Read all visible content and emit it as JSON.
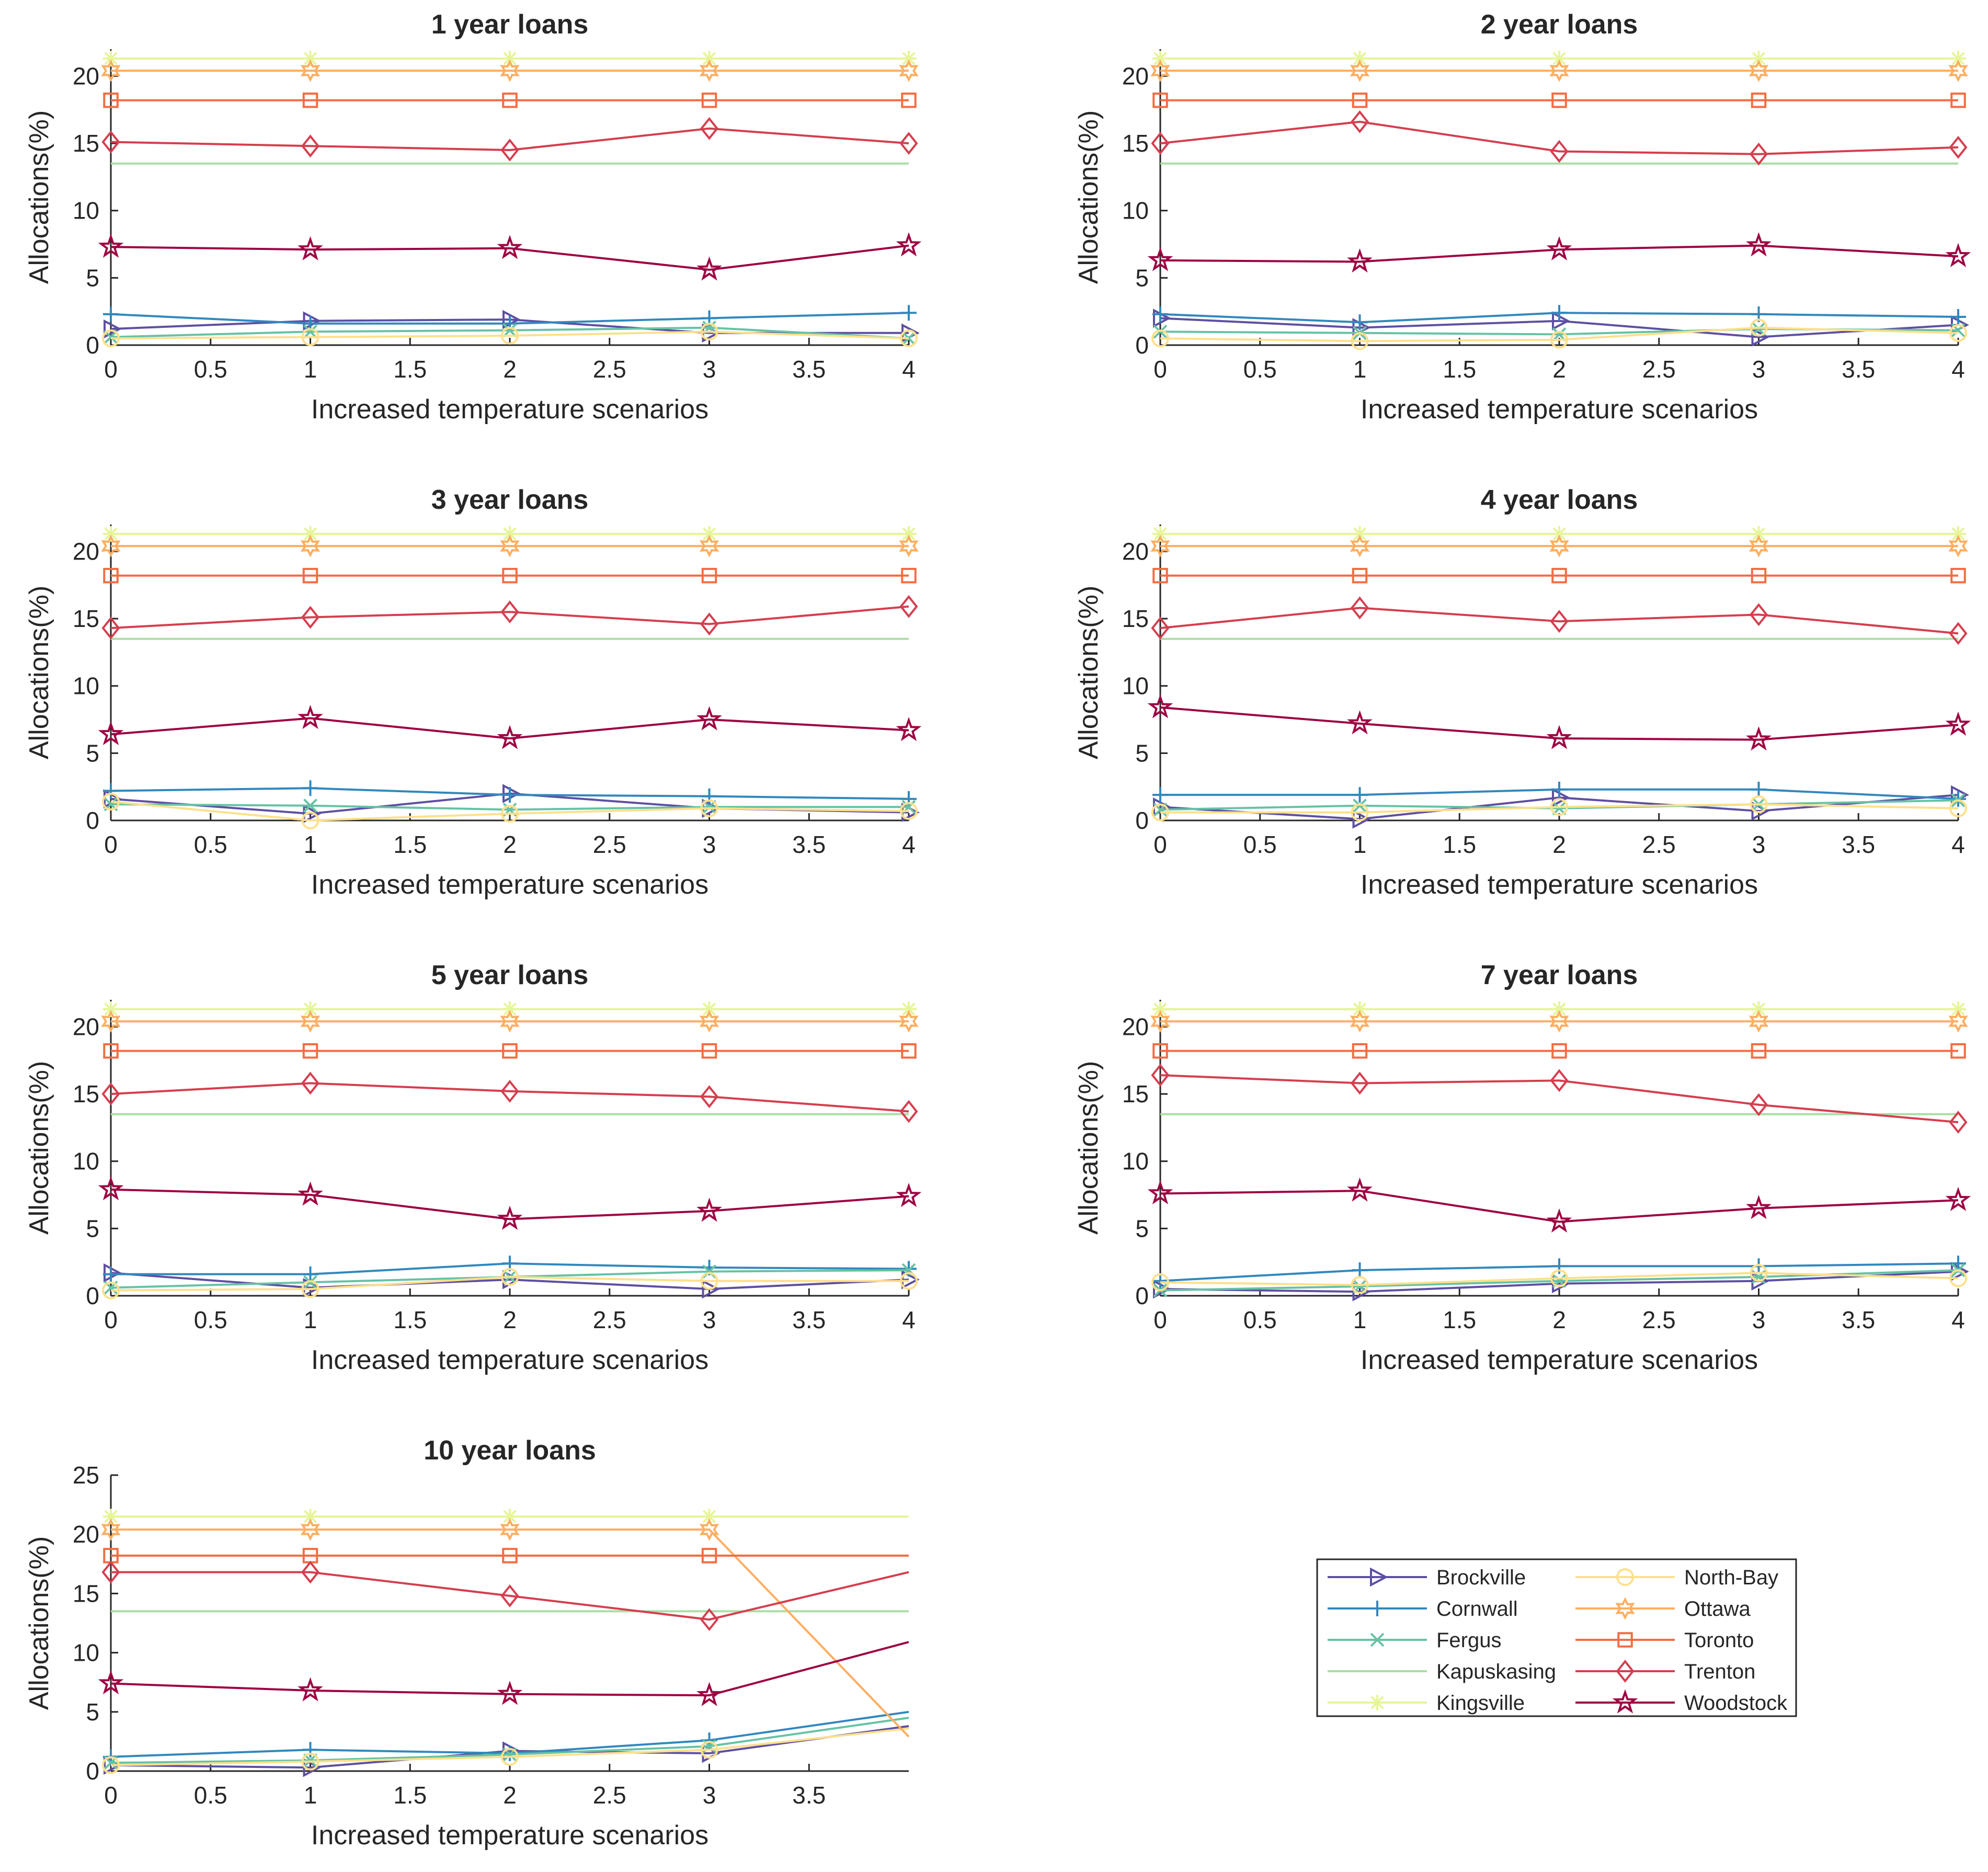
{
  "chart_data": {
    "type": "line",
    "xlabel": "Increased temperature scenarios",
    "ylabel": "Allocations(%)",
    "series_styles": [
      {
        "name": "Brockville",
        "color": "#5e4fa2",
        "marker": "triangle-right"
      },
      {
        "name": "Cornwall",
        "color": "#3288bd",
        "marker": "plus"
      },
      {
        "name": "Fergus",
        "color": "#66c2a5",
        "marker": "x"
      },
      {
        "name": "Kapuskasing",
        "color": "#abdda4",
        "marker": "none"
      },
      {
        "name": "Kingsville",
        "color": "#e6f598",
        "marker": "asterisk"
      },
      {
        "name": "North-Bay",
        "color": "#fee08b",
        "marker": "circle"
      },
      {
        "name": "Ottawa",
        "color": "#fdae61",
        "marker": "hexagram"
      },
      {
        "name": "Toronto",
        "color": "#f46d43",
        "marker": "square"
      },
      {
        "name": "Trenton",
        "color": "#d53e4f",
        "marker": "diamond"
      },
      {
        "name": "Woodstock",
        "color": "#9e0142",
        "marker": "pentagram"
      }
    ],
    "legend": {
      "placement": "lower-right",
      "entries": [
        "Brockville",
        "Cornwall",
        "Fergus",
        "Kapuskasing",
        "Kingsville",
        "North-Bay",
        "Ottawa",
        "Toronto",
        "Trenton",
        "Woodstock"
      ]
    },
    "charts": [
      {
        "title": "1 year loans",
        "x": [
          0,
          1,
          2,
          3,
          4
        ],
        "xlim": [
          0,
          4
        ],
        "ylim": [
          0,
          22
        ],
        "xticks": [
          "0",
          "0.5",
          "1",
          "1.5",
          "2",
          "2.5",
          "3",
          "3.5",
          "4"
        ],
        "yticks": [
          "0",
          "5",
          "10",
          "15",
          "20"
        ],
        "series": [
          {
            "name": "Brockville",
            "values": [
              1.2,
              1.8,
              1.9,
              0.9,
              0.9
            ]
          },
          {
            "name": "Cornwall",
            "values": [
              2.3,
              1.6,
              1.6,
              2.0,
              2.4
            ]
          },
          {
            "name": "Fergus",
            "values": [
              0.6,
              1.0,
              1.1,
              1.3,
              0.5
            ]
          },
          {
            "name": "Kapuskasing",
            "values": [
              13.5,
              13.5,
              13.5,
              13.5,
              13.5
            ]
          },
          {
            "name": "Kingsville",
            "values": [
              21.3,
              21.3,
              21.3,
              21.3,
              21.3
            ]
          },
          {
            "name": "North-Bay",
            "values": [
              0.5,
              0.6,
              0.7,
              1.0,
              0.5
            ]
          },
          {
            "name": "Ottawa",
            "values": [
              20.4,
              20.4,
              20.4,
              20.4,
              20.4
            ]
          },
          {
            "name": "Toronto",
            "values": [
              18.2,
              18.2,
              18.2,
              18.2,
              18.2
            ]
          },
          {
            "name": "Trenton",
            "values": [
              15.1,
              14.8,
              14.5,
              16.1,
              15.0
            ]
          },
          {
            "name": "Woodstock",
            "values": [
              7.3,
              7.1,
              7.2,
              5.6,
              7.4
            ]
          }
        ]
      },
      {
        "title": "2 year loans",
        "x": [
          0,
          1,
          2,
          3,
          4
        ],
        "xlim": [
          0,
          4
        ],
        "ylim": [
          0,
          22
        ],
        "xticks": [
          "0",
          "0.5",
          "1",
          "1.5",
          "2",
          "2.5",
          "3",
          "3.5",
          "4"
        ],
        "yticks": [
          "0",
          "5",
          "10",
          "15",
          "20"
        ],
        "series": [
          {
            "name": "Brockville",
            "values": [
              2.0,
              1.3,
              1.8,
              0.6,
              1.5
            ]
          },
          {
            "name": "Cornwall",
            "values": [
              2.3,
              1.7,
              2.4,
              2.3,
              2.1
            ]
          },
          {
            "name": "Fergus",
            "values": [
              1.0,
              0.9,
              0.8,
              1.2,
              1.1
            ]
          },
          {
            "name": "Kapuskasing",
            "values": [
              13.5,
              13.5,
              13.5,
              13.5,
              13.5
            ]
          },
          {
            "name": "Kingsville",
            "values": [
              21.3,
              21.3,
              21.3,
              21.3,
              21.3
            ]
          },
          {
            "name": "North-Bay",
            "values": [
              0.5,
              0.3,
              0.4,
              1.3,
              0.9
            ]
          },
          {
            "name": "Ottawa",
            "values": [
              20.4,
              20.4,
              20.4,
              20.4,
              20.4
            ]
          },
          {
            "name": "Toronto",
            "values": [
              18.2,
              18.2,
              18.2,
              18.2,
              18.2
            ]
          },
          {
            "name": "Trenton",
            "values": [
              15.0,
              16.6,
              14.4,
              14.2,
              14.7
            ]
          },
          {
            "name": "Woodstock",
            "values": [
              6.3,
              6.2,
              7.1,
              7.4,
              6.6
            ]
          }
        ]
      },
      {
        "title": "3 year loans",
        "x": [
          0,
          1,
          2,
          3,
          4
        ],
        "xlim": [
          0,
          4
        ],
        "ylim": [
          0,
          22
        ],
        "xticks": [
          "0",
          "0.5",
          "1",
          "1.5",
          "2",
          "2.5",
          "3",
          "3.5",
          "4"
        ],
        "yticks": [
          "0",
          "5",
          "10",
          "15",
          "20"
        ],
        "series": [
          {
            "name": "Brockville",
            "values": [
              1.6,
              0.5,
              2.0,
              0.9,
              0.6
            ]
          },
          {
            "name": "Cornwall",
            "values": [
              2.2,
              2.4,
              1.9,
              1.8,
              1.6
            ]
          },
          {
            "name": "Fergus",
            "values": [
              1.2,
              1.1,
              0.8,
              1.0,
              1.0
            ]
          },
          {
            "name": "Kapuskasing",
            "values": [
              13.5,
              13.5,
              13.5,
              13.5,
              13.5
            ]
          },
          {
            "name": "Kingsville",
            "values": [
              21.3,
              21.3,
              21.3,
              21.3,
              21.3
            ]
          },
          {
            "name": "North-Bay",
            "values": [
              1.4,
              0.0,
              0.5,
              0.9,
              0.7
            ]
          },
          {
            "name": "Ottawa",
            "values": [
              20.4,
              20.4,
              20.4,
              20.4,
              20.4
            ]
          },
          {
            "name": "Toronto",
            "values": [
              18.2,
              18.2,
              18.2,
              18.2,
              18.2
            ]
          },
          {
            "name": "Trenton",
            "values": [
              14.3,
              15.1,
              15.5,
              14.6,
              15.9
            ]
          },
          {
            "name": "Woodstock",
            "values": [
              6.4,
              7.6,
              6.1,
              7.5,
              6.7
            ]
          }
        ]
      },
      {
        "title": "4 year loans",
        "x": [
          0,
          1,
          2,
          3,
          4
        ],
        "xlim": [
          0,
          4
        ],
        "ylim": [
          0,
          22
        ],
        "xticks": [
          "0",
          "0.5",
          "1",
          "1.5",
          "2",
          "2.5",
          "3",
          "3.5",
          "4"
        ],
        "yticks": [
          "0",
          "5",
          "10",
          "15",
          "20"
        ],
        "series": [
          {
            "name": "Brockville",
            "values": [
              1.0,
              0.1,
              1.7,
              0.7,
              1.9
            ]
          },
          {
            "name": "Cornwall",
            "values": [
              1.9,
              1.9,
              2.3,
              2.3,
              1.6
            ]
          },
          {
            "name": "Fergus",
            "values": [
              0.8,
              1.1,
              0.9,
              1.2,
              1.5
            ]
          },
          {
            "name": "Kapuskasing",
            "values": [
              13.5,
              13.5,
              13.5,
              13.5,
              13.5
            ]
          },
          {
            "name": "Kingsville",
            "values": [
              21.3,
              21.3,
              21.3,
              21.3,
              21.3
            ]
          },
          {
            "name": "North-Bay",
            "values": [
              0.6,
              0.6,
              1.0,
              1.2,
              0.9
            ]
          },
          {
            "name": "Ottawa",
            "values": [
              20.4,
              20.4,
              20.4,
              20.4,
              20.4
            ]
          },
          {
            "name": "Toronto",
            "values": [
              18.2,
              18.2,
              18.2,
              18.2,
              18.2
            ]
          },
          {
            "name": "Trenton",
            "values": [
              14.3,
              15.8,
              14.8,
              15.3,
              13.9
            ]
          },
          {
            "name": "Woodstock",
            "values": [
              8.4,
              7.2,
              6.1,
              6.0,
              7.1
            ]
          }
        ]
      },
      {
        "title": "5 year loans",
        "x": [
          0,
          1,
          2,
          3,
          4
        ],
        "xlim": [
          0,
          4
        ],
        "ylim": [
          0,
          22
        ],
        "xticks": [
          "0",
          "0.5",
          "1",
          "1.5",
          "2",
          "2.5",
          "3",
          "3.5",
          "4"
        ],
        "yticks": [
          "0",
          "5",
          "10",
          "15",
          "20"
        ],
        "series": [
          {
            "name": "Brockville",
            "values": [
              1.7,
              0.6,
              1.2,
              0.5,
              1.2
            ]
          },
          {
            "name": "Cornwall",
            "values": [
              1.6,
              1.6,
              2.4,
              2.1,
              2.0
            ]
          },
          {
            "name": "Fergus",
            "values": [
              0.6,
              1.0,
              1.4,
              1.8,
              1.9
            ]
          },
          {
            "name": "Kapuskasing",
            "values": [
              13.5,
              13.5,
              13.5,
              13.5,
              13.5
            ]
          },
          {
            "name": "Kingsville",
            "values": [
              21.3,
              21.3,
              21.3,
              21.3,
              21.3
            ]
          },
          {
            "name": "North-Bay",
            "values": [
              0.4,
              0.5,
              1.4,
              1.1,
              1.1
            ]
          },
          {
            "name": "Ottawa",
            "values": [
              20.4,
              20.4,
              20.4,
              20.4,
              20.4
            ]
          },
          {
            "name": "Toronto",
            "values": [
              18.2,
              18.2,
              18.2,
              18.2,
              18.2
            ]
          },
          {
            "name": "Trenton",
            "values": [
              15.0,
              15.8,
              15.2,
              14.8,
              13.7
            ]
          },
          {
            "name": "Woodstock",
            "values": [
              7.9,
              7.5,
              5.7,
              6.3,
              7.4
            ]
          }
        ]
      },
      {
        "title": "7 year loans",
        "x": [
          0,
          1,
          2,
          3,
          4
        ],
        "xlim": [
          0,
          4
        ],
        "ylim": [
          0,
          22
        ],
        "xticks": [
          "0",
          "0.5",
          "1",
          "1.5",
          "2",
          "2.5",
          "3",
          "3.5",
          "4"
        ],
        "yticks": [
          "0",
          "5",
          "10",
          "15",
          "20"
        ],
        "series": [
          {
            "name": "Brockville",
            "values": [
              0.5,
              0.3,
              0.9,
              1.1,
              1.8
            ]
          },
          {
            "name": "Cornwall",
            "values": [
              1.1,
              1.9,
              2.2,
              2.2,
              2.4
            ]
          },
          {
            "name": "Fergus",
            "values": [
              0.4,
              0.7,
              1.1,
              1.4,
              1.9
            ]
          },
          {
            "name": "Kapuskasing",
            "values": [
              13.5,
              13.5,
              13.5,
              13.5,
              13.5
            ]
          },
          {
            "name": "Kingsville",
            "values": [
              21.3,
              21.3,
              21.3,
              21.3,
              21.3
            ]
          },
          {
            "name": "North-Bay",
            "values": [
              1.0,
              0.8,
              1.3,
              1.7,
              1.3
            ]
          },
          {
            "name": "Ottawa",
            "values": [
              20.4,
              20.4,
              20.4,
              20.4,
              20.4
            ]
          },
          {
            "name": "Toronto",
            "values": [
              18.2,
              18.2,
              18.2,
              18.2,
              18.2
            ]
          },
          {
            "name": "Trenton",
            "values": [
              16.4,
              15.8,
              16.0,
              14.2,
              12.9
            ]
          },
          {
            "name": "Woodstock",
            "values": [
              7.6,
              7.8,
              5.5,
              6.5,
              7.1
            ]
          }
        ]
      },
      {
        "title": "10 year loans",
        "x": [
          0,
          1,
          2,
          3,
          4
        ],
        "xlim": [
          0,
          4
        ],
        "ylim": [
          0,
          25
        ],
        "xticks": [
          "0",
          "0.5",
          "1",
          "1.5",
          "2",
          "2.5",
          "3",
          "3.5"
        ],
        "yticks": [
          "0",
          "5",
          "10",
          "15",
          "20",
          "25"
        ],
        "marker_until_x": 3,
        "series": [
          {
            "name": "Brockville",
            "values": [
              0.5,
              0.3,
              1.7,
              1.5,
              3.8
            ]
          },
          {
            "name": "Cornwall",
            "values": [
              1.2,
              1.8,
              1.5,
              2.6,
              5.0
            ]
          },
          {
            "name": "Fergus",
            "values": [
              0.7,
              0.9,
              1.4,
              2.1,
              4.5
            ]
          },
          {
            "name": "Kapuskasing",
            "values": [
              13.5,
              13.5,
              13.5,
              13.5,
              13.5
            ]
          },
          {
            "name": "Kingsville",
            "values": [
              21.5,
              21.5,
              21.5,
              21.5,
              21.5
            ]
          },
          {
            "name": "North-Bay",
            "values": [
              0.5,
              0.8,
              1.2,
              1.8,
              3.6
            ]
          },
          {
            "name": "Ottawa",
            "values": [
              20.4,
              20.4,
              20.4,
              20.4,
              2.9
            ]
          },
          {
            "name": "Toronto",
            "values": [
              18.2,
              18.2,
              18.2,
              18.2,
              18.2
            ]
          },
          {
            "name": "Trenton",
            "values": [
              16.8,
              16.8,
              14.8,
              12.8,
              16.8
            ]
          },
          {
            "name": "Woodstock",
            "values": [
              7.4,
              6.8,
              6.5,
              6.4,
              10.9
            ]
          }
        ]
      }
    ]
  }
}
